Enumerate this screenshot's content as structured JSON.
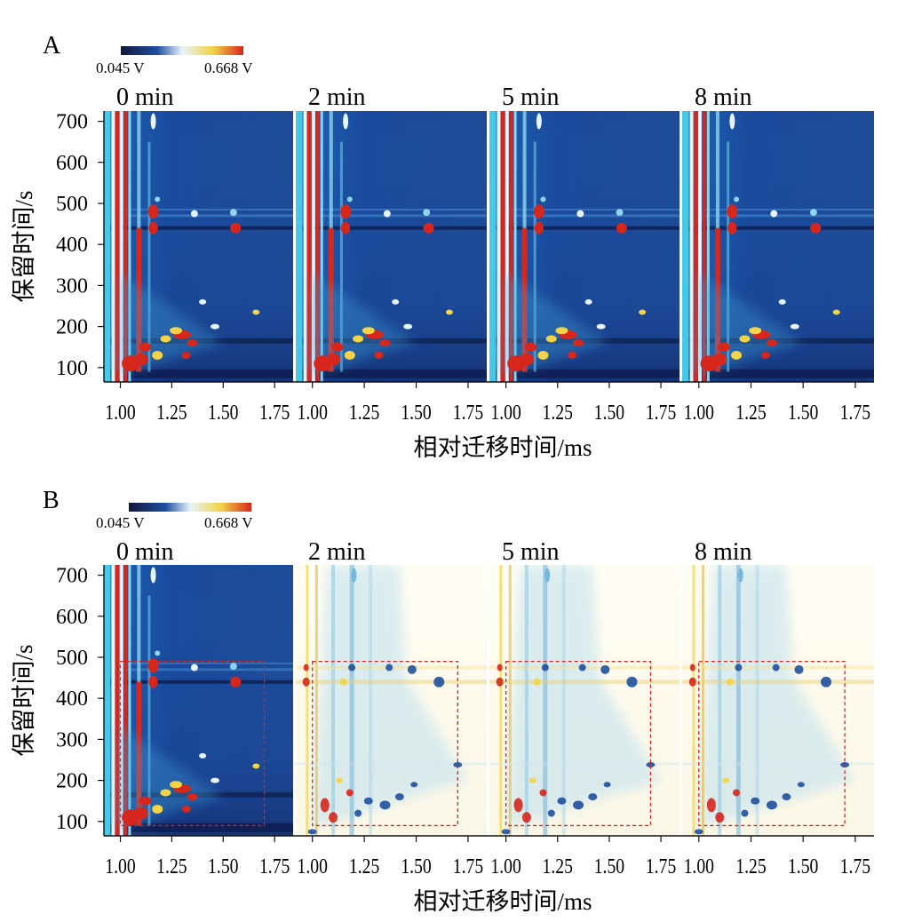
{
  "figure": {
    "panel_labels": [
      "A",
      "B"
    ]
  },
  "colors": {
    "low": "#10153a",
    "mid_low": "#1f4fa0",
    "mid": "#e6f4fb",
    "mid_high": "#f2d446",
    "high": "#d7261c"
  },
  "chart_data": [
    {
      "type": "heatmap",
      "panel": "A",
      "colorbar": {
        "min_label": "0.045 V",
        "max_label": "0.668 V"
      },
      "subplots": [
        "0 min",
        "2 min",
        "5 min",
        "8 min"
      ],
      "xlabel": "相对迁移时间/ms",
      "ylabel": "保留时间/s",
      "xlim": [
        0.92,
        1.84
      ],
      "ylim": [
        65,
        725
      ],
      "xticks": [
        "1.00",
        "1.25",
        "1.50",
        "1.75"
      ],
      "yticks": [
        "100",
        "200",
        "300",
        "400",
        "500",
        "600",
        "700"
      ],
      "background": "raw",
      "highlight_box": null
    },
    {
      "type": "heatmap",
      "panel": "B",
      "colorbar": {
        "min_label": "0.045 V",
        "max_label": "0.668 V"
      },
      "subplots": [
        "0 min",
        "2 min",
        "5 min",
        "8 min"
      ],
      "xlabel": "相对迁移时间/ms",
      "ylabel": "保留时间/s",
      "xlim": [
        0.92,
        1.84
      ],
      "ylim": [
        65,
        725
      ],
      "xticks": [
        "1.00",
        "1.25",
        "1.50",
        "1.75"
      ],
      "yticks": [
        "100",
        "200",
        "300",
        "400",
        "500",
        "600",
        "700"
      ],
      "background": "difference",
      "highlight_box": {
        "x": [
          1.0,
          1.7
        ],
        "y": [
          90,
          490
        ]
      }
    }
  ]
}
